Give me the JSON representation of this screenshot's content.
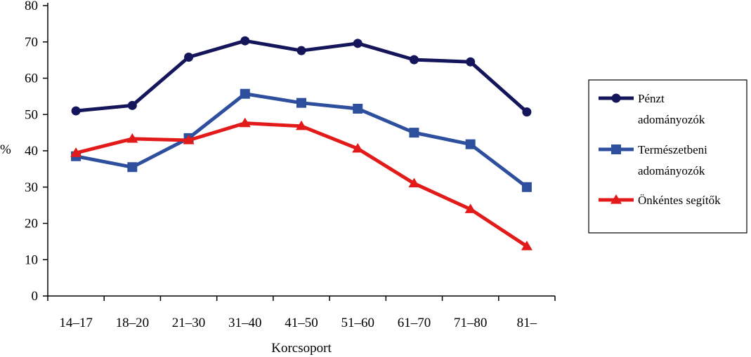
{
  "chart_data": {
    "type": "line",
    "categories": [
      "14–17",
      "18–20",
      "21–30",
      "31–40",
      "41–50",
      "51–60",
      "61–70",
      "71–80",
      "81–"
    ],
    "series": [
      {
        "name_lines": [
          "Pénzt",
          "adományozók"
        ],
        "color": "#14155a",
        "marker": "circle",
        "values": [
          51,
          52.5,
          65.8,
          70.3,
          67.6,
          69.6,
          65.1,
          64.5,
          50.7
        ]
      },
      {
        "name_lines": [
          "Természetbeni",
          "adományozók"
        ],
        "color": "#2e4e9e",
        "marker": "square",
        "values": [
          38.5,
          35.5,
          43.5,
          55.7,
          53.2,
          51.6,
          45,
          41.8,
          30
        ]
      },
      {
        "name_lines": [
          "Önkéntes segítők"
        ],
        "color": "#e21a1a",
        "marker": "triangle",
        "values": [
          39.4,
          43.3,
          42.9,
          47.6,
          46.8,
          40.6,
          31,
          23.9,
          13.7
        ]
      }
    ],
    "xlabel": "Korcsoport",
    "ylabel": "%",
    "ylim": [
      0,
      80
    ],
    "yticks": [
      "0",
      "10",
      "20",
      "30",
      "40",
      "50",
      "60",
      "70",
      "80"
    ],
    "grid": false,
    "legend_position": "right"
  }
}
